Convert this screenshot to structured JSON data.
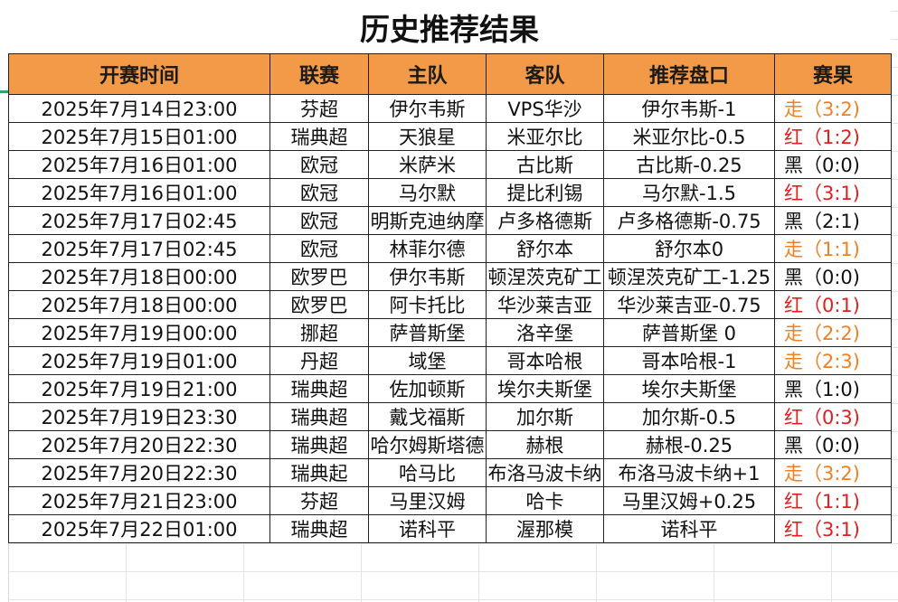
{
  "title": "历史推荐结果",
  "headers": [
    "开赛时间",
    "联赛",
    "主队",
    "客队",
    "推荐盘口",
    "赛果"
  ],
  "result_colors": {
    "走": "#f08020",
    "红": "#e02020",
    "黑": "#111111"
  },
  "rows": [
    {
      "time": "2025年7月14日23:00",
      "league": "芬超",
      "home": "伊尔韦斯",
      "away": "VPS华沙",
      "pick": "伊尔韦斯-1",
      "result": "走（3:2)",
      "type": "walk"
    },
    {
      "time": "2025年7月15日01:00",
      "league": "瑞典超",
      "home": "天狼星",
      "away": "米亚尔比",
      "pick": "米亚尔比-0.5",
      "result": "红（1:2)",
      "type": "red"
    },
    {
      "time": "2025年7月16日01:00",
      "league": "欧冠",
      "home": "米萨米",
      "away": "古比斯",
      "pick": "古比斯-0.25",
      "result": "黑（0:0)",
      "type": "black"
    },
    {
      "time": "2025年7月16日01:00",
      "league": "欧冠",
      "home": "马尔默",
      "away": "提比利锡",
      "pick": "马尔默-1.5",
      "result": "红（3:1)",
      "type": "red"
    },
    {
      "time": "2025年7月17日02:45",
      "league": "欧冠",
      "home": "明斯克迪纳摩",
      "away": "卢多格德斯",
      "pick": "卢多格德斯-0.75",
      "result": "黑（2:1)",
      "type": "black"
    },
    {
      "time": "2025年7月17日02:45",
      "league": "欧冠",
      "home": "林菲尔德",
      "away": "舒尔本",
      "pick": "舒尔本0",
      "result": "走（1:1)",
      "type": "walk"
    },
    {
      "time": "2025年7月18日00:00",
      "league": "欧罗巴",
      "home": "伊尔韦斯",
      "away": "顿涅茨克矿工",
      "pick": "顿涅茨克矿工-1.25",
      "result": "黑（0:0)",
      "type": "black"
    },
    {
      "time": "2025年7月18日00:00",
      "league": "欧罗巴",
      "home": "阿卡托比",
      "away": "华沙莱吉亚",
      "pick": "华沙莱吉亚-0.75",
      "result": "红（0:1)",
      "type": "red"
    },
    {
      "time": "2025年7月19日00:00",
      "league": "挪超",
      "home": "萨普斯堡",
      "away": "洛辛堡",
      "pick": "萨普斯堡 0",
      "result": "走（2:2)",
      "type": "walk"
    },
    {
      "time": "2025年7月19日01:00",
      "league": "丹超",
      "home": "域堡",
      "away": "哥本哈根",
      "pick": "哥本哈根-1",
      "result": "走（2:3)",
      "type": "walk"
    },
    {
      "time": "2025年7月19日21:00",
      "league": "瑞典超",
      "home": "佐加顿斯",
      "away": "埃尔夫斯堡",
      "pick": "埃尔夫斯堡",
      "result": "黑（1:0)",
      "type": "black"
    },
    {
      "time": "2025年7月19日23:30",
      "league": "瑞典超",
      "home": "戴戈福斯",
      "away": "加尔斯",
      "pick": "加尔斯-0.5",
      "result": "红（0:3)",
      "type": "red"
    },
    {
      "time": "2025年7月20日22:30",
      "league": "瑞典超",
      "home": "哈尔姆斯塔德",
      "away": "赫根",
      "pick": "赫根-0.25",
      "result": "黑（0:0)",
      "type": "black"
    },
    {
      "time": "2025年7月20日22:30",
      "league": "瑞典起",
      "home": "哈马比",
      "away": "布洛马波卡纳",
      "pick": "布洛马波卡纳+1",
      "result": "走（3:2)",
      "type": "walk"
    },
    {
      "time": "2025年7月21日23:00",
      "league": "芬超",
      "home": "马里汉姆",
      "away": "哈卡",
      "pick": "马里汉姆+0.25",
      "result": "红（1:1)",
      "type": "red"
    },
    {
      "time": "2025年7月22日01:00",
      "league": "瑞典超",
      "home": "诺科平",
      "away": "渥那模",
      "pick": "诺科平",
      "result": "红（3:1)",
      "type": "red"
    }
  ]
}
